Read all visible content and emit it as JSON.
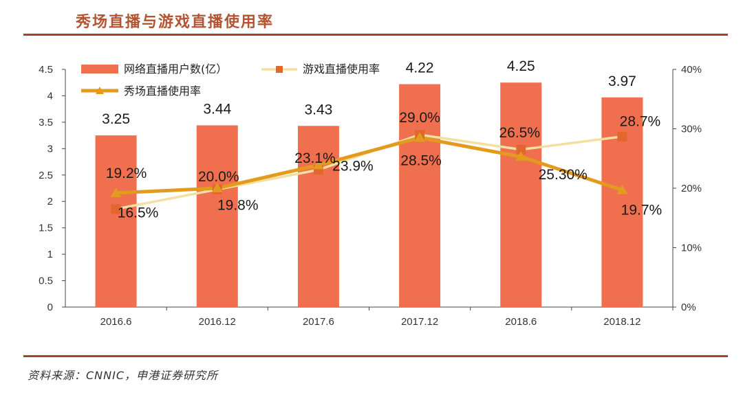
{
  "title": "秀场直播与游戏直播使用率",
  "source": "资料来源：CNNIC，申港证券研究所",
  "colors": {
    "bar": "#ef6f4f",
    "game_line": "#f3dfa0",
    "game_marker": "#e2672e",
    "show_line": "#e39b1d",
    "title": "#b5522f",
    "rule": "#a0432a"
  },
  "chart_data": {
    "type": "bar+line",
    "categories": [
      "2016.6",
      "2016.12",
      "2017.6",
      "2017.12",
      "2018.6",
      "2018.12"
    ],
    "left_axis": {
      "ylim": [
        0,
        4.5
      ],
      "ticks": [
        "0",
        "0.5",
        "1",
        "1.5",
        "2",
        "2.5",
        "3",
        "3.5",
        "4",
        "4.5"
      ]
    },
    "right_axis": {
      "ylim": [
        0,
        40
      ],
      "ticks": [
        "0%",
        "10%",
        "20%",
        "30%",
        "40%"
      ]
    },
    "series": [
      {
        "name": "网络直播用户数(亿）",
        "type": "bar",
        "axis": "left",
        "values": [
          3.25,
          3.44,
          3.43,
          4.22,
          4.25,
          3.97
        ],
        "labels": [
          "3.25",
          "3.44",
          "3.43",
          "4.22",
          "4.25",
          "3.97"
        ]
      },
      {
        "name": "游戏直播使用率",
        "type": "line",
        "axis": "right",
        "marker": "square",
        "values": [
          16.5,
          19.8,
          23.1,
          29.0,
          26.5,
          28.7
        ],
        "labels": [
          "16.5%",
          "19.8%",
          "23.1%",
          "29.0%",
          "26.5%",
          "28.7%"
        ]
      },
      {
        "name": "秀场直播使用率",
        "type": "line",
        "axis": "right",
        "marker": "triangle",
        "values": [
          19.2,
          20.0,
          23.9,
          28.5,
          25.3,
          19.7
        ],
        "labels": [
          "19.2%",
          "20.0%",
          "23.9%",
          "28.5%",
          "25.30%",
          "19.7%"
        ]
      }
    ]
  }
}
